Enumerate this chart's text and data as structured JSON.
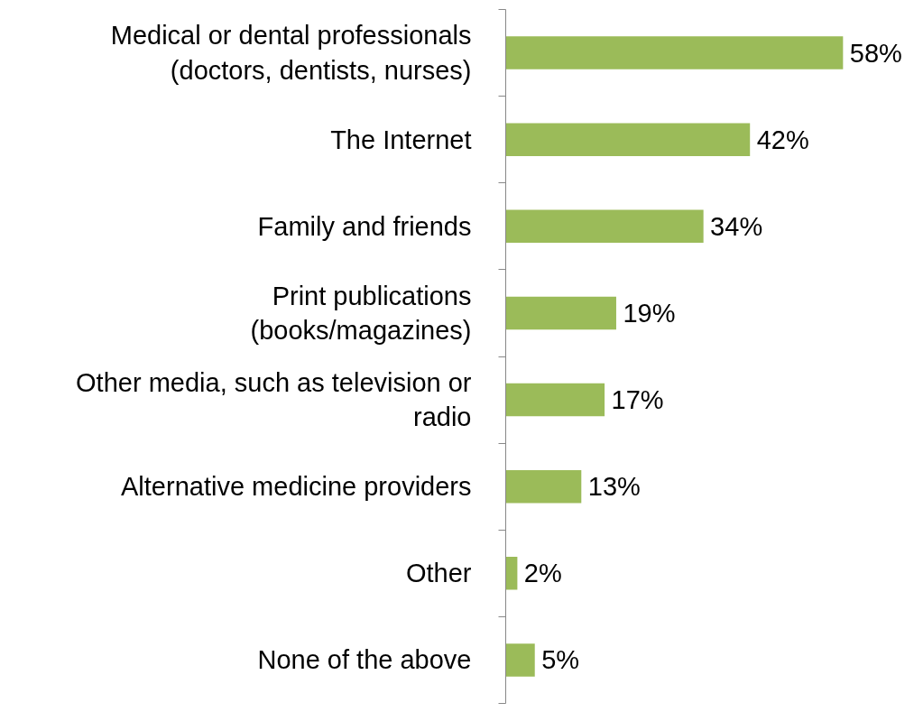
{
  "chart_data": {
    "type": "bar",
    "orientation": "horizontal",
    "categories": [
      "Medical or dental professionals\n(doctors, dentists, nurses)",
      "The Internet",
      "Family and friends",
      "Print publications\n(books/magazines)",
      "Other media, such as television or\nradio",
      "Alternative medicine providers",
      "Other",
      "None of the above"
    ],
    "values": [
      58,
      42,
      34,
      19,
      17,
      13,
      2,
      5
    ],
    "value_labels": [
      "58%",
      "42%",
      "34%",
      "19%",
      "17%",
      "13%",
      "2%",
      "5%"
    ],
    "color": "#9bbb59",
    "grid": false,
    "tick_labels": "y"
  }
}
